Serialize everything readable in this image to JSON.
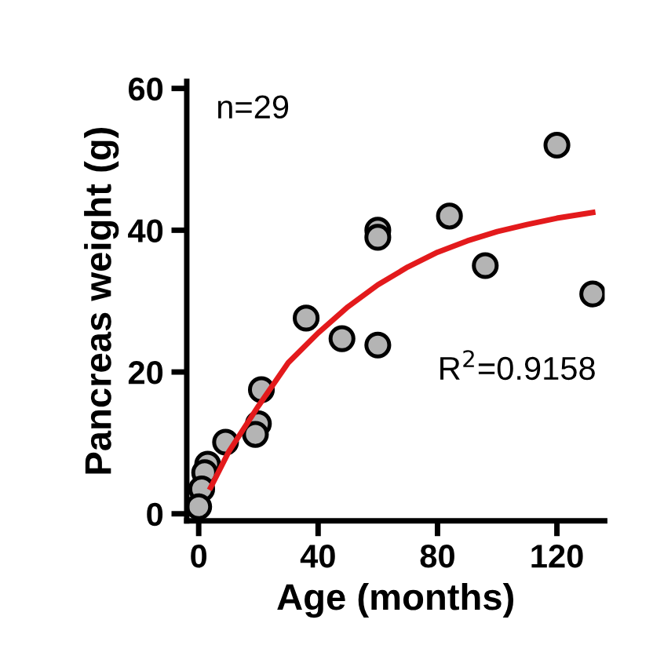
{
  "chart_data": {
    "type": "scatter",
    "xlabel": "Age (months)",
    "ylabel": "Pancreas weight (g)",
    "annotations": [
      "n=29",
      "R$^{2}$=0.9158"
    ],
    "xlim": [
      -4,
      136
    ],
    "ylim": [
      -1,
      61
    ],
    "xticks": [
      0,
      40,
      80,
      120
    ],
    "yticks": [
      0,
      20,
      40,
      60
    ],
    "grid": false,
    "legend": false,
    "series": [
      {
        "color": "#b4b4b4",
        "marker": "circle",
        "x": [
          120,
          84,
          60,
          60,
          96,
          132,
          36,
          48,
          60,
          21,
          20,
          19,
          9,
          3,
          2,
          1,
          0
        ],
        "values": [
          52,
          42,
          40,
          39,
          35,
          31,
          27.6,
          24.7,
          23.8,
          17.5,
          12.7,
          11.2,
          10.1,
          7,
          5.8,
          3.5,
          1
        ]
      },
      {
        "type": "line",
        "color": "#e31a1c",
        "marker": "none",
        "line_style": "solid",
        "x": [
          4,
          10,
          20,
          30,
          40,
          50,
          60,
          70,
          80,
          90,
          100,
          110,
          120,
          132
        ],
        "values": [
          3.7,
          8.7,
          15.2,
          21.3,
          25.5,
          29.2,
          32.3,
          34.8,
          36.9,
          38.5,
          39.8,
          40.8,
          41.7,
          42.5
        ]
      }
    ]
  }
}
